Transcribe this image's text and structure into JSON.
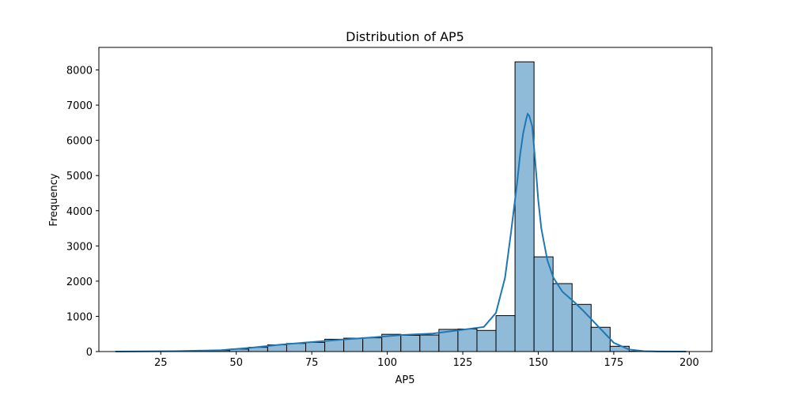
{
  "chart_data": {
    "type": "bar",
    "title": "Distribution of AP5",
    "xlabel": "AP5",
    "ylabel": "Frequency",
    "xlim": [
      4.5,
      207.5
    ],
    "ylim": [
      0,
      8640
    ],
    "xticks": [
      25,
      50,
      75,
      100,
      125,
      150,
      175,
      200
    ],
    "yticks": [
      0,
      1000,
      2000,
      3000,
      4000,
      5000,
      6000,
      7000,
      8000
    ],
    "grid": false,
    "bar_color": "#8fbbd9",
    "edge_color": "#000000",
    "kde_color": "#1f77b4",
    "bins": [
      {
        "x0": 10.0,
        "x1": 16.3,
        "count": 2
      },
      {
        "x0": 16.3,
        "x1": 22.6,
        "count": 3
      },
      {
        "x0": 22.6,
        "x1": 28.9,
        "count": 5
      },
      {
        "x0": 28.9,
        "x1": 35.2,
        "count": 8
      },
      {
        "x0": 35.2,
        "x1": 41.5,
        "count": 15
      },
      {
        "x0": 41.5,
        "x1": 47.8,
        "count": 30
      },
      {
        "x0": 47.8,
        "x1": 54.1,
        "count": 70
      },
      {
        "x0": 54.1,
        "x1": 60.4,
        "count": 120
      },
      {
        "x0": 60.4,
        "x1": 66.7,
        "count": 190
      },
      {
        "x0": 66.7,
        "x1": 73.0,
        "count": 230
      },
      {
        "x0": 73.0,
        "x1": 79.3,
        "count": 260
      },
      {
        "x0": 79.3,
        "x1": 85.6,
        "count": 350
      },
      {
        "x0": 85.6,
        "x1": 91.9,
        "count": 380
      },
      {
        "x0": 91.9,
        "x1": 98.2,
        "count": 390
      },
      {
        "x0": 98.2,
        "x1": 104.5,
        "count": 490
      },
      {
        "x0": 104.5,
        "x1": 110.8,
        "count": 460
      },
      {
        "x0": 110.8,
        "x1": 117.1,
        "count": 470
      },
      {
        "x0": 117.1,
        "x1": 123.4,
        "count": 630
      },
      {
        "x0": 123.4,
        "x1": 129.7,
        "count": 640
      },
      {
        "x0": 129.7,
        "x1": 136.0,
        "count": 600
      },
      {
        "x0": 136.0,
        "x1": 142.3,
        "count": 1020
      },
      {
        "x0": 142.3,
        "x1": 148.6,
        "count": 8230
      },
      {
        "x0": 148.6,
        "x1": 154.9,
        "count": 2690
      },
      {
        "x0": 154.9,
        "x1": 161.2,
        "count": 1930
      },
      {
        "x0": 161.2,
        "x1": 167.5,
        "count": 1340
      },
      {
        "x0": 167.5,
        "x1": 173.8,
        "count": 690
      },
      {
        "x0": 173.8,
        "x1": 180.1,
        "count": 150
      },
      {
        "x0": 180.1,
        "x1": 186.4,
        "count": 10
      },
      {
        "x0": 186.4,
        "x1": 192.7,
        "count": 3
      },
      {
        "x0": 192.7,
        "x1": 199.0,
        "count": 1
      }
    ],
    "kde": {
      "x": [
        10,
        30,
        45,
        55,
        65,
        75,
        85,
        95,
        105,
        115,
        125,
        132,
        136,
        139,
        141,
        143,
        144,
        145,
        146,
        146.5,
        147,
        148,
        149,
        150,
        151,
        153,
        155,
        158,
        162,
        165,
        170,
        175,
        180,
        185,
        190,
        199
      ],
      "y": [
        0,
        10,
        40,
        110,
        200,
        270,
        340,
        400,
        470,
        510,
        620,
        700,
        1100,
        2100,
        3400,
        4800,
        5600,
        6200,
        6600,
        6750,
        6700,
        6400,
        5400,
        4300,
        3500,
        2600,
        2100,
        1700,
        1400,
        1150,
        700,
        250,
        60,
        10,
        2,
        0
      ]
    }
  }
}
